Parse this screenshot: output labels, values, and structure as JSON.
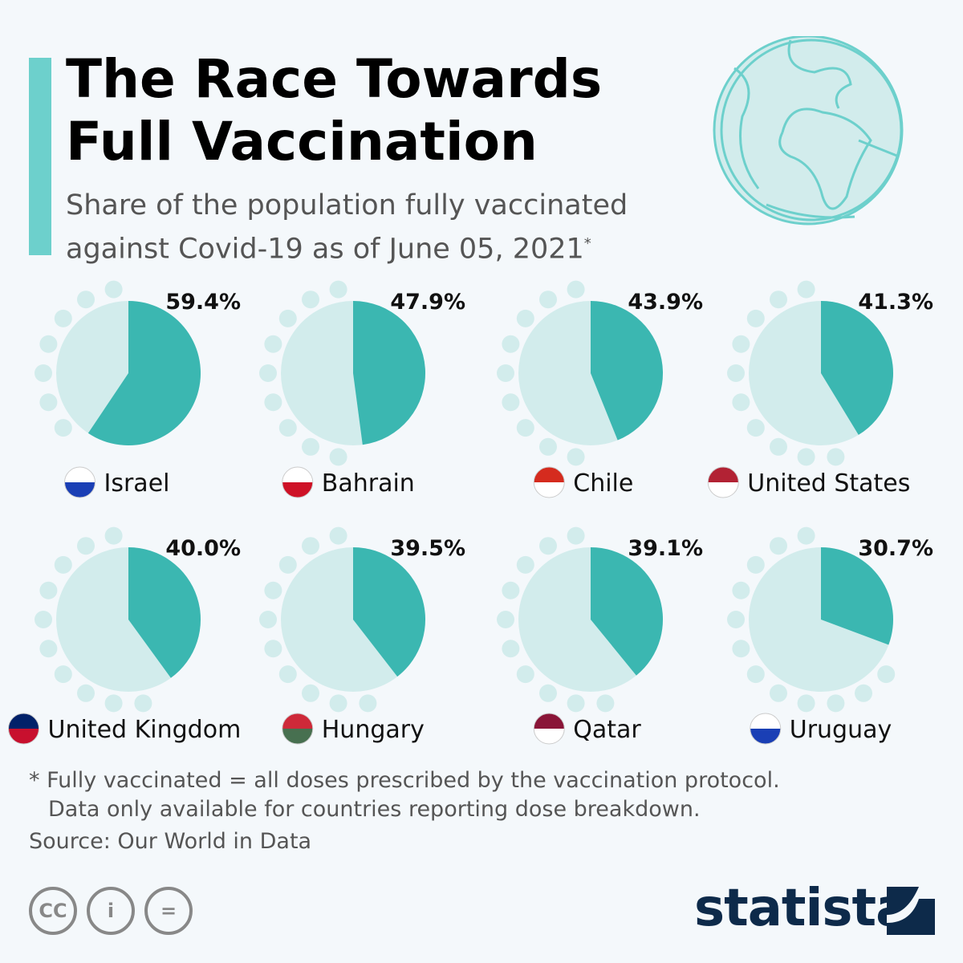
{
  "title": "The Race Towards Full Vaccination",
  "title_line1": "The Race Towards",
  "title_line2": "Full Vaccination",
  "subtitle_line1": "Share of the population fully vaccinated",
  "subtitle_line2": "against Covid-19 as of June 05, 2021",
  "subtitle_mark": "*",
  "chart_data": {
    "type": "pie",
    "title": "The Race Towards Full Vaccination",
    "unit": "% fully vaccinated",
    "series": [
      {
        "country": "Israel",
        "value": 59.4,
        "label": "59.4%"
      },
      {
        "country": "Bahrain",
        "value": 47.9,
        "label": "47.9%"
      },
      {
        "country": "Chile",
        "value": 43.9,
        "label": "43.9%"
      },
      {
        "country": "United States",
        "value": 41.3,
        "label": "41.3%"
      },
      {
        "country": "United Kingdom",
        "value": 40.0,
        "label": "40.0%"
      },
      {
        "country": "Hungary",
        "value": 39.5,
        "label": "39.5%"
      },
      {
        "country": "Qatar",
        "value": 39.1,
        "label": "39.1%"
      },
      {
        "country": "Uruguay",
        "value": 30.7,
        "label": "30.7%"
      }
    ]
  },
  "colors": {
    "vaccinated": "#3bb7b1",
    "rest": "#d2ecec",
    "accent": "#6dd0cc"
  },
  "footnote_line1": "* Fully vaccinated = all doses prescribed by the vaccination protocol.",
  "footnote_line2": "Data only available for countries reporting dose breakdown.",
  "source": "Source: Our World in Data",
  "license_icons": {
    "cc": "CC",
    "by": "i",
    "nd": "="
  },
  "brand": "statista"
}
